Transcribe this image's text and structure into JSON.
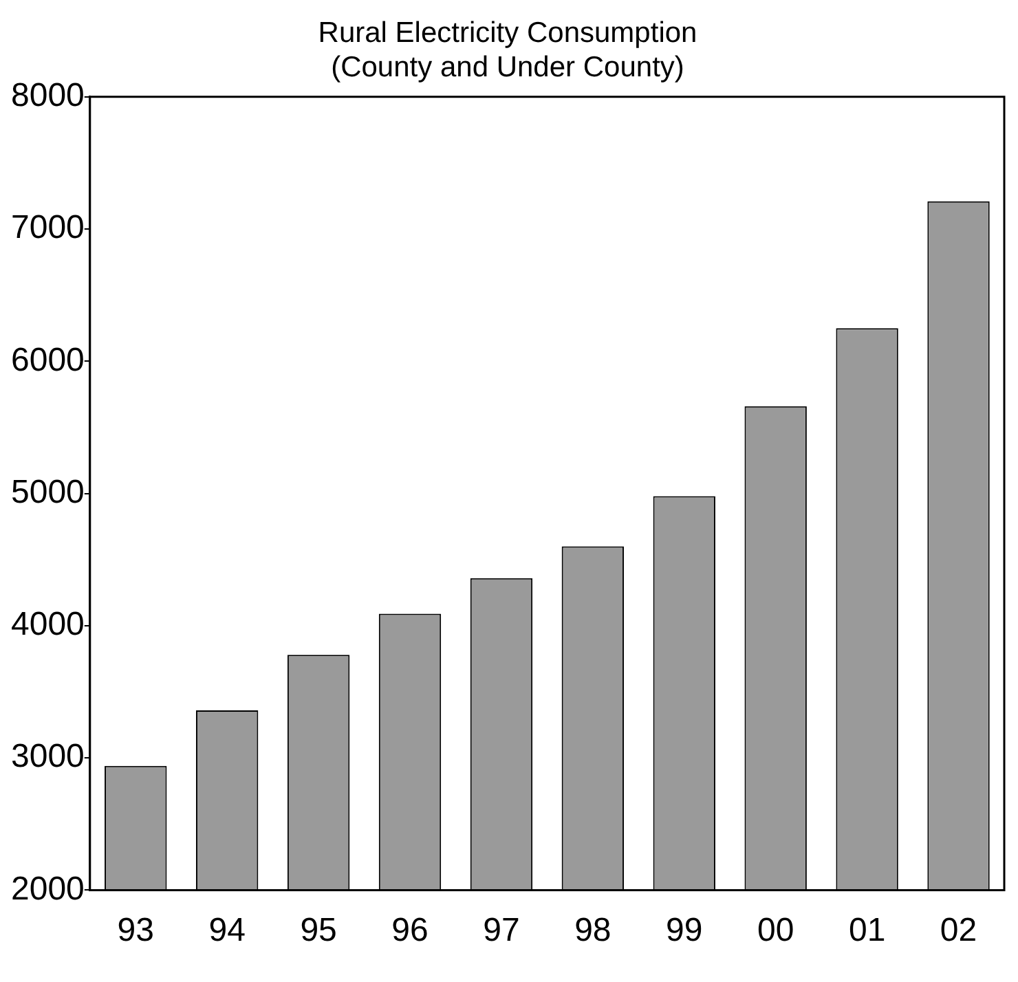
{
  "chart_data": {
    "type": "bar",
    "title": "Rural Electricity Consumption\n(County and Under County)",
    "categories": [
      "93",
      "94",
      "95",
      "96",
      "97",
      "98",
      "99",
      "00",
      "01",
      "02"
    ],
    "values": [
      2940,
      3360,
      3780,
      4090,
      4360,
      4600,
      4980,
      5660,
      6250,
      7210
    ],
    "color": "#9a9a9a",
    "ylim": [
      2000,
      8000
    ],
    "yticks": [
      2000,
      3000,
      4000,
      5000,
      6000,
      7000,
      8000
    ],
    "grid": false,
    "legend": false
  }
}
